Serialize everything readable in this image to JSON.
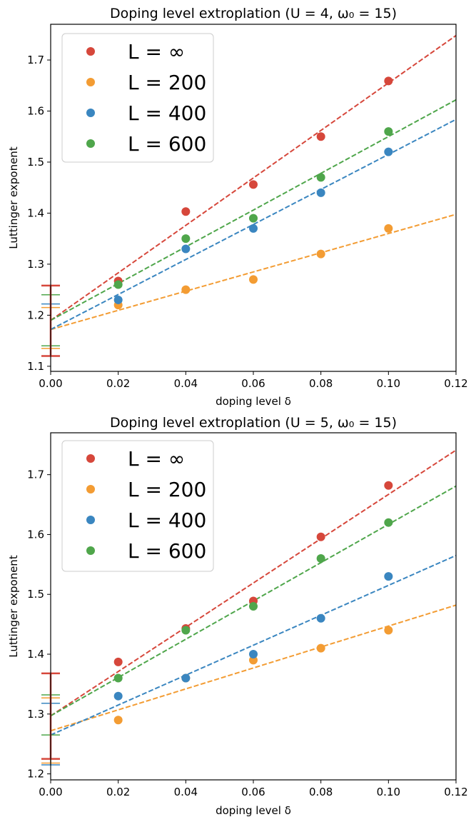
{
  "chart_data": [
    {
      "type": "scatter",
      "title": "Doping level extroplation (U = 4, ω₀ = 15)",
      "xlabel": "doping level δ",
      "ylabel": "Luttinger exponent",
      "xlim": [
        0.0,
        0.12
      ],
      "ylim": [
        1.09,
        1.77
      ],
      "xticks": [
        "0.00",
        "0.02",
        "0.04",
        "0.06",
        "0.08",
        "0.10",
        "0.12"
      ],
      "yticks": [
        "1.1",
        "1.2",
        "1.3",
        "1.4",
        "1.5",
        "1.6",
        "1.7"
      ],
      "legend_position": "top-left",
      "grid": false,
      "x": [
        0.02,
        0.04,
        0.06,
        0.08,
        0.1
      ],
      "series": [
        {
          "name": "L = ∞",
          "color": "#d6473b",
          "values": [
            1.267,
            1.403,
            1.456,
            1.55,
            1.659
          ],
          "fit": {
            "intercept": 1.19,
            "slope": 4.65
          },
          "errorbar_at_zero": {
            "center": 1.19,
            "low": 1.12,
            "high": 1.258
          }
        },
        {
          "name": "L = 200",
          "color": "#f39c33",
          "values": [
            1.22,
            1.25,
            1.27,
            1.32,
            1.37
          ],
          "fit": {
            "intercept": 1.172,
            "slope": 1.88
          },
          "errorbar_at_zero": {
            "center": 1.172,
            "low": 1.135,
            "high": 1.215
          }
        },
        {
          "name": "L = 400",
          "color": "#3a86c0",
          "values": [
            1.23,
            1.33,
            1.37,
            1.44,
            1.52
          ],
          "fit": {
            "intercept": 1.172,
            "slope": 3.43
          },
          "errorbar_at_zero": {
            "center": 1.172,
            "low": 1.12,
            "high": 1.222
          }
        },
        {
          "name": "L = 600",
          "color": "#4fa64b",
          "values": [
            1.26,
            1.35,
            1.39,
            1.47,
            1.56
          ],
          "fit": {
            "intercept": 1.19,
            "slope": 3.6
          },
          "errorbar_at_zero": {
            "center": 1.19,
            "low": 1.14,
            "high": 1.24
          }
        }
      ]
    },
    {
      "type": "scatter",
      "title": "Doping level extroplation (U = 5, ω₀ = 15)",
      "xlabel": "doping level δ",
      "ylabel": "Luttinger exponent",
      "xlim": [
        0.0,
        0.12
      ],
      "ylim": [
        1.19,
        1.77
      ],
      "xticks": [
        "0.00",
        "0.02",
        "0.04",
        "0.06",
        "0.08",
        "0.10",
        "0.12"
      ],
      "yticks": [
        "1.2",
        "1.3",
        "1.4",
        "1.5",
        "1.6",
        "1.7"
      ],
      "legend_position": "top-left",
      "grid": false,
      "x": [
        0.02,
        0.04,
        0.06,
        0.08,
        0.1
      ],
      "series": [
        {
          "name": "L = ∞",
          "color": "#d6473b",
          "values": [
            1.387,
            1.443,
            1.489,
            1.596,
            1.682
          ],
          "fit": {
            "intercept": 1.297,
            "slope": 3.7
          },
          "errorbar_at_zero": {
            "center": 1.297,
            "low": 1.225,
            "high": 1.368
          }
        },
        {
          "name": "L = 200",
          "color": "#f39c33",
          "values": [
            1.29,
            1.36,
            1.39,
            1.41,
            1.44
          ],
          "fit": {
            "intercept": 1.272,
            "slope": 1.75
          },
          "errorbar_at_zero": {
            "center": 1.272,
            "low": 1.218,
            "high": 1.327
          }
        },
        {
          "name": "L = 400",
          "color": "#3a86c0",
          "values": [
            1.33,
            1.36,
            1.4,
            1.46,
            1.53
          ],
          "fit": {
            "intercept": 1.265,
            "slope": 2.5
          },
          "errorbar_at_zero": {
            "center": 1.265,
            "low": 1.215,
            "high": 1.318
          }
        },
        {
          "name": "L = 600",
          "color": "#4fa64b",
          "values": [
            1.36,
            1.44,
            1.48,
            1.56,
            1.62
          ],
          "fit": {
            "intercept": 1.297,
            "slope": 3.2
          },
          "errorbar_at_zero": {
            "center": 1.297,
            "low": 1.265,
            "high": 1.332
          }
        }
      ]
    }
  ]
}
